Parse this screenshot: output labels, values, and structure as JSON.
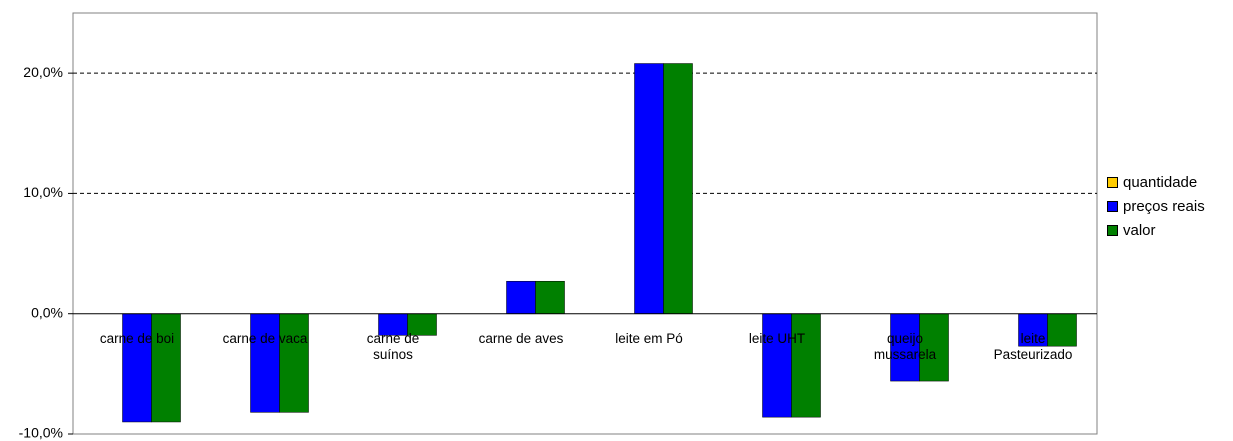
{
  "chart_data": {
    "type": "bar",
    "categories": [
      "carne de boi",
      "carne de vaca",
      "carne de\nsuínos",
      "carne de aves",
      "leite em Pó",
      "leite UHT",
      "queijo\nmussarela",
      "leite\nPasteurizado"
    ],
    "series": [
      {
        "name": "quantidade",
        "color": "#ffcc00",
        "values": [
          0,
          0,
          0,
          0,
          0,
          0,
          0,
          0
        ]
      },
      {
        "name": "preços reais",
        "color": "#0000ff",
        "values": [
          -9.0,
          -8.2,
          -1.8,
          2.7,
          20.8,
          -8.6,
          -5.6,
          -2.7
        ]
      },
      {
        "name": "valor",
        "color": "#008000",
        "values": [
          -9.0,
          -8.2,
          -1.8,
          2.7,
          20.8,
          -8.6,
          -5.6,
          -2.7
        ]
      }
    ],
    "ylim": [
      -10,
      25
    ],
    "yticks": [
      {
        "value": -10,
        "label": "-10,0%"
      },
      {
        "value": 0,
        "label": "0,0%"
      },
      {
        "value": 10,
        "label": "10,0%"
      },
      {
        "value": 20,
        "label": "20,0%"
      }
    ],
    "grid": true,
    "legend": "right"
  }
}
